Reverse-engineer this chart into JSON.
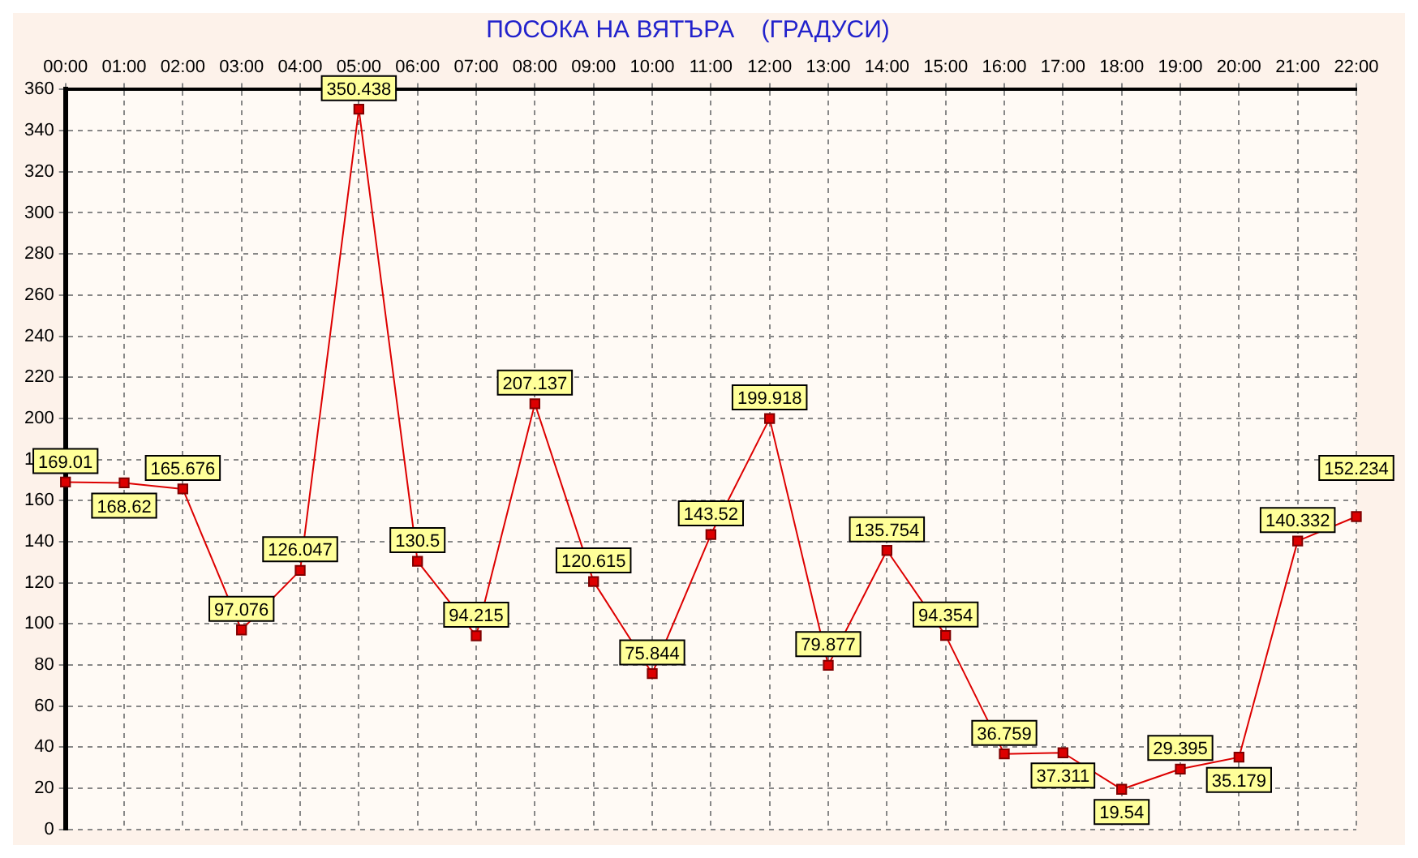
{
  "chart_data": {
    "type": "line",
    "title": "ПОСОКА НА ВЯТЪРА    (ГРАДУСИ)",
    "categories": [
      "00:00",
      "01:00",
      "02:00",
      "03:00",
      "04:00",
      "05:00",
      "06:00",
      "07:00",
      "08:00",
      "09:00",
      "10:00",
      "11:00",
      "12:00",
      "13:00",
      "14:00",
      "15:00",
      "16:00",
      "17:00",
      "18:00",
      "19:00",
      "20:00",
      "21:00",
      "22:00"
    ],
    "series": [
      {
        "color": "#dd0000",
        "values": [
          169.01,
          168.62,
          165.676,
          97.076,
          126.047,
          350.438,
          130.5,
          94.215,
          207.137,
          120.615,
          75.844,
          143.52,
          199.918,
          79.877,
          135.754,
          94.354,
          36.759,
          37.311,
          19.54,
          29.395,
          35.179,
          140.332,
          152.234
        ]
      }
    ],
    "ylim": [
      0,
      360
    ],
    "yticks": [
      0,
      20,
      40,
      60,
      80,
      100,
      120,
      140,
      160,
      180,
      200,
      220,
      240,
      260,
      280,
      300,
      320,
      340,
      360
    ],
    "grid": true,
    "legend": false,
    "marker": "square",
    "line_style": "solid",
    "data_labels": true
  }
}
